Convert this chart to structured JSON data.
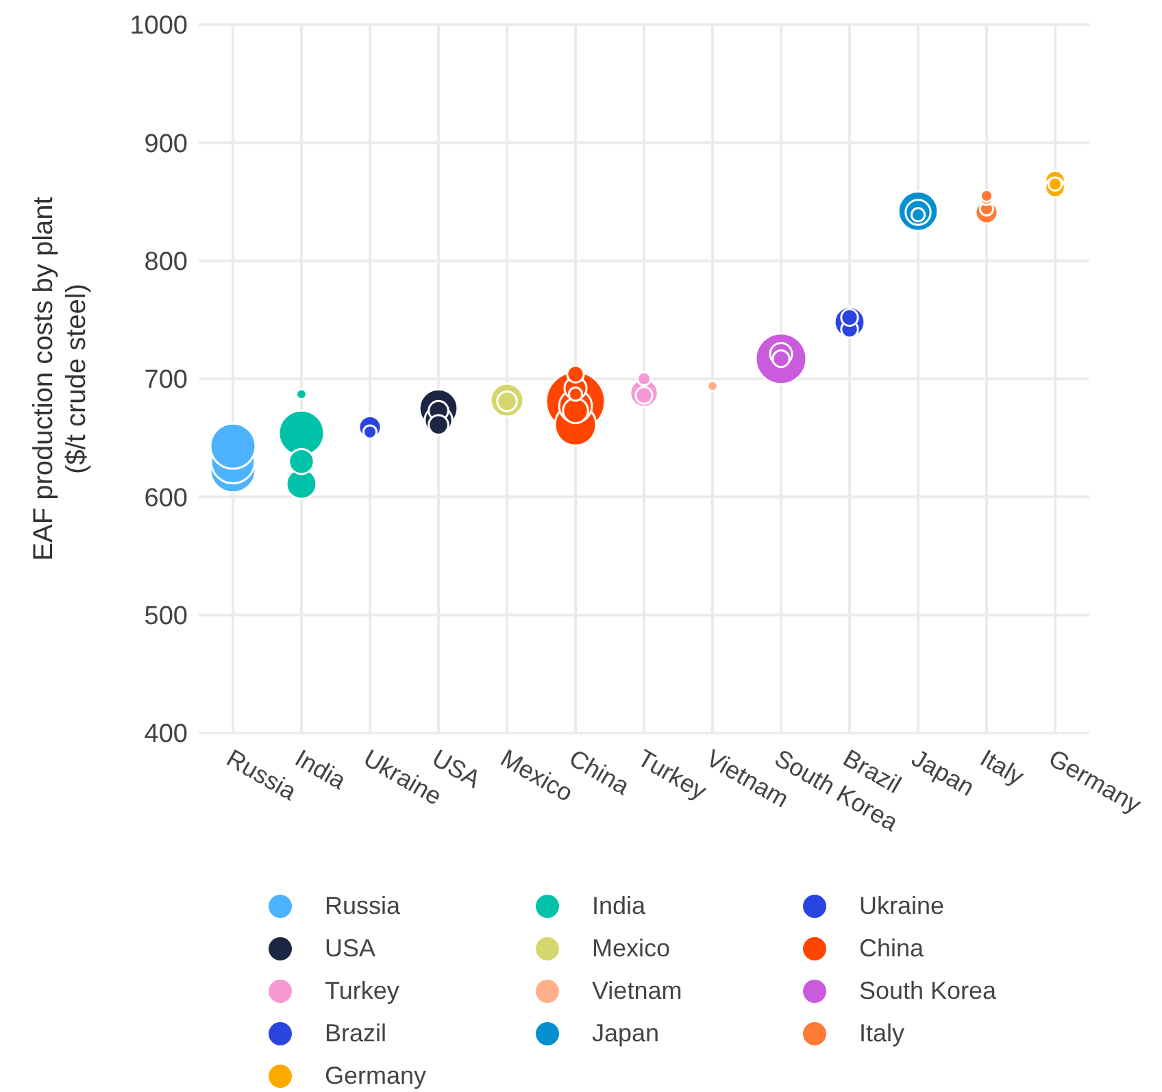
{
  "chart_data": {
    "type": "bubble",
    "ylabel": "EAF production costs by plant ($/t crude steel)",
    "categories": [
      "Russia",
      "India",
      "Ukraine",
      "USA",
      "Mexico",
      "China",
      "Turkey",
      "Vietnam",
      "South Korea",
      "Brazil",
      "Japan",
      "Italy",
      "Germany"
    ],
    "ylim": [
      400,
      1000
    ],
    "yticks": [
      400,
      500,
      600,
      700,
      800,
      900,
      1000
    ],
    "grid": true,
    "legend": "bottom",
    "series": [
      {
        "name": "Russia",
        "color": "#4db3ff",
        "x": [
          "Russia",
          "Russia",
          "Russia"
        ],
        "values": [
          623,
          630,
          643
        ],
        "sizes": [
          0.59,
          0.55,
          0.59
        ]
      },
      {
        "name": "India",
        "color": "#00c2a8",
        "x": [
          "India",
          "India",
          "India",
          "India"
        ],
        "values": [
          654,
          611,
          630,
          687
        ],
        "sizes": [
          0.59,
          0.26,
          0.18,
          0.03
        ]
      },
      {
        "name": "Ukraine",
        "color": "#2a44e0",
        "x": [
          "Ukraine",
          "Ukraine"
        ],
        "values": [
          659,
          655
        ],
        "sizes": [
          0.14,
          0.05
        ]
      },
      {
        "name": "USA",
        "color": "#1b2742",
        "x": [
          "USA",
          "USA",
          "USA",
          "USA"
        ],
        "values": [
          675,
          665,
          673,
          661
        ],
        "sizes": [
          0.42,
          0.22,
          0.11,
          0.11
        ]
      },
      {
        "name": "Mexico",
        "color": "#d6d66e",
        "x": [
          "Mexico",
          "Mexico"
        ],
        "values": [
          682,
          681
        ],
        "sizes": [
          0.31,
          0.11
        ]
      },
      {
        "name": "China",
        "color": "#ff4500",
        "x": [
          "China",
          "China",
          "China",
          "China",
          "China",
          "China",
          "China"
        ],
        "values": [
          681,
          661,
          677,
          673,
          692,
          704,
          687
        ],
        "sizes": [
          1,
          0.49,
          0.31,
          0.18,
          0.14,
          0.08,
          0.05
        ]
      },
      {
        "name": "Turkey",
        "color": "#f799d5",
        "x": [
          "Turkey",
          "Turkey",
          "Turkey"
        ],
        "values": [
          688,
          686,
          700
        ],
        "sizes": [
          0.22,
          0.08,
          0.05
        ]
      },
      {
        "name": "Vietnam",
        "color": "#ffb08a",
        "x": [
          "Vietnam"
        ],
        "values": [
          694
        ],
        "sizes": [
          0.03
        ]
      },
      {
        "name": "South Korea",
        "color": "#c95bdc",
        "x": [
          "South Korea",
          "South Korea",
          "South Korea"
        ],
        "values": [
          717,
          721,
          717
        ],
        "sizes": [
          0.74,
          0.14,
          0.08
        ]
      },
      {
        "name": "Brazil",
        "color": "#2a44e0",
        "x": [
          "Brazil",
          "Brazil",
          "Brazil"
        ],
        "values": [
          748,
          742,
          752
        ],
        "sizes": [
          0.26,
          0.08,
          0.08
        ]
      },
      {
        "name": "Japan",
        "color": "#0590d0",
        "x": [
          "Japan",
          "Japan",
          "Japan"
        ],
        "values": [
          842,
          841,
          839
        ],
        "sizes": [
          0.45,
          0.18,
          0.05
        ]
      },
      {
        "name": "Italy",
        "color": "#ff7a35",
        "x": [
          "Italy",
          "Italy",
          "Italy",
          "Italy"
        ],
        "values": [
          841,
          844,
          853,
          855
        ],
        "sizes": [
          0.14,
          0.05,
          0.05,
          0.04
        ]
      },
      {
        "name": "Germany",
        "color": "#ffaa00",
        "x": [
          "Germany",
          "Germany",
          "Germany"
        ],
        "values": [
          868,
          862,
          865
        ],
        "sizes": [
          0.11,
          0.11,
          0.05
        ]
      }
    ]
  }
}
